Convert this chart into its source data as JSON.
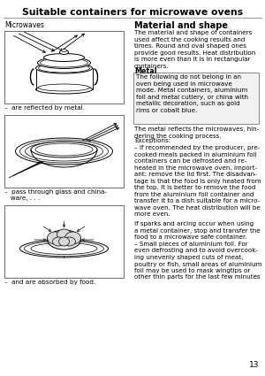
{
  "title": "Suitable containers for microwave ovens",
  "page_number": "13",
  "background_color": "#ffffff",
  "left_header": "Microwaves",
  "caption1": "–  are reflected by metal.",
  "caption2": "–  pass through glass and china-\n   ware, . . .",
  "caption3": "–  and are absorbed by food.",
  "sec1_title": "Material and shape",
  "sec1_body": "The material and shape of containers\nused affect the cooking results and\ntimes. Round and oval shaped ones\nprovide good results. Heat distribution\nis more even than it is in rectangular\ncontainers.",
  "sec2_title": "Metal",
  "sec2_box": "The following do not belong in an\noven being used in microwave\nmode. Metal containers, aluminium\nfoil and metal cutlery, or china with\nmetallic decoration, such as gold\nrims or cobalt blue.",
  "sec2_after": "The metal reflects the microwaves, hin-\ndering the cooking process.",
  "exc_title": "Exceptions:",
  "exc_body1": "– If recommended by the producer, pre-\ncooked meals packed in aluminium foil\ncontainers can be defrosted and re-\nheated in the microwave oven. Import-\nant: remove the lid first. The disadvan-\ntage is that the food is only heated from\nthe top. It is better to remove the food\nfrom the aluminium foil container and\ntransfer it to a dish suitable for a micro-\nwave oven. The heat distribution will be\nmore even.",
  "exc_body2": "If sparks and arcing occur when using\na metal container, stop and transfer the\nfood to a microwave safe container.",
  "exc_body3": "– Small pieces of aluminium foil. For\neven defrosting and to avoid overcook-\ning unevenly shaped cuts of meat,\npoultry or fish, small areas of aluminium\nfoil may be used to mask wingtips or\nother thin parts for the last few minutes"
}
